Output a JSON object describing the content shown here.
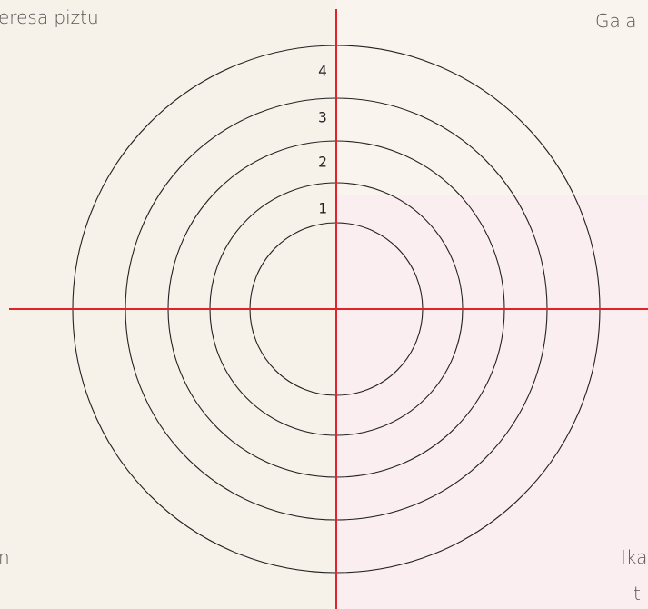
{
  "corner_labels": {
    "top_left": "eresa piztu",
    "top_right": "Gaia",
    "bottom_left": "n",
    "bottom_right": [
      "Ika",
      "t"
    ]
  },
  "rings": [
    "1",
    "2",
    "3",
    "4"
  ]
}
